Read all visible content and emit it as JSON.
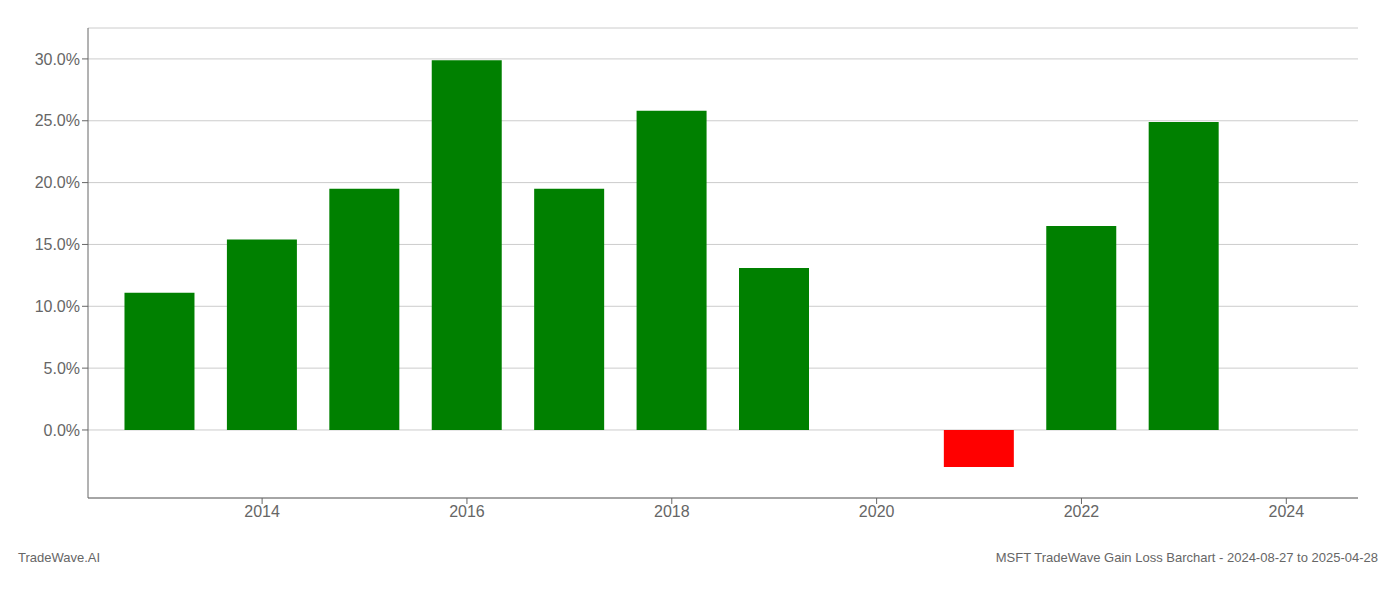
{
  "chart_data": {
    "type": "bar",
    "title": "MSFT TradeWave Gain Loss Barchart - 2024-08-27 to 2025-04-28",
    "annotations": [
      "TradeWave.AI"
    ],
    "x": [
      2013,
      2014,
      2015,
      2016,
      2017,
      2018,
      2019,
      2021,
      2022,
      2023
    ],
    "values": [
      0.111,
      0.154,
      0.195,
      0.299,
      0.195,
      0.258,
      0.131,
      -0.03,
      0.165,
      0.249
    ],
    "colors": [
      "#008000",
      "#008000",
      "#008000",
      "#008000",
      "#008000",
      "#008000",
      "#008000",
      "#ff0000",
      "#008000",
      "#008000"
    ],
    "xlim": [
      2012.3,
      2024.7
    ],
    "xticks": [
      2014,
      2016,
      2018,
      2020,
      2022,
      2024
    ],
    "ylim": [
      -0.055,
      0.325
    ],
    "yticks": [
      {
        "value": 0.0,
        "label": "0.0%"
      },
      {
        "value": 0.05,
        "label": "5.0%"
      },
      {
        "value": 0.1,
        "label": "10.0%"
      },
      {
        "value": 0.15,
        "label": "15.0%"
      },
      {
        "value": 0.2,
        "label": "20.0%"
      },
      {
        "value": 0.25,
        "label": "25.0%"
      },
      {
        "value": 0.3,
        "label": "30.0%"
      }
    ],
    "grid": true
  }
}
